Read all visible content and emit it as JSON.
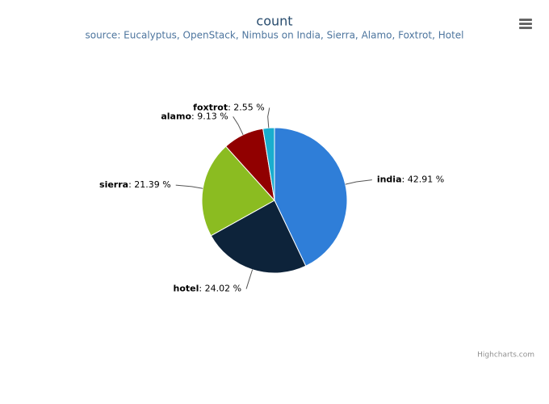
{
  "chart_data": {
    "type": "pie",
    "title": "count",
    "subtitle": "source: Eucalyptus, OpenStack, Nimbus on India, Sierra, Alamo, Foxtrot, Hotel",
    "categories": [
      "india",
      "hotel",
      "sierra",
      "alamo",
      "foxtrot"
    ],
    "values": [
      42.91,
      24.02,
      21.39,
      9.13,
      2.55
    ],
    "value_labels": [
      ": 42.91 %",
      ": 24.02 %",
      ": 21.39 %",
      ": 9.13 %",
      ": 2.55 %"
    ],
    "colors": [
      "#2f7ed8",
      "#0d233a",
      "#8bbc21",
      "#910000",
      "#1aadce"
    ],
    "credits": "Highcharts.com"
  }
}
